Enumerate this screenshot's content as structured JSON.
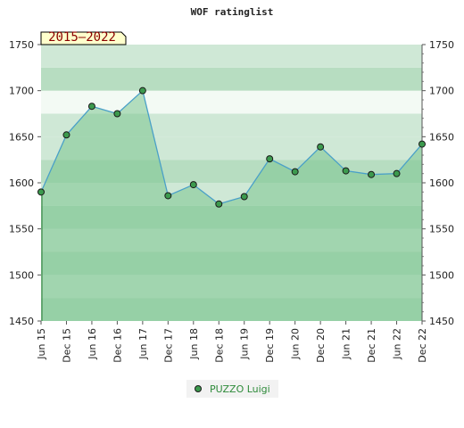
{
  "chart_data": {
    "type": "area",
    "title": "WOF ratinglist",
    "period_badge": "2015–2022",
    "categories": [
      "Jun 15",
      "Dec 15",
      "Jun 16",
      "Dec 16",
      "Jun 17",
      "Dec 17",
      "Jun 18",
      "Dec 18",
      "Jun 19",
      "Dec 19",
      "Jun 20",
      "Dec 20",
      "Jun 21",
      "Dec 21",
      "Jun 22",
      "Dec 22"
    ],
    "series": [
      {
        "name": "PUZZO Luigi",
        "values": [
          1590,
          1652,
          1683,
          1675,
          1700,
          1586,
          1598,
          1577,
          1585,
          1626,
          1612,
          1639,
          1613,
          1609,
          1610,
          1642
        ],
        "color": "#4aa0c8",
        "marker_color": "#3c9a4e"
      }
    ],
    "ylim": [
      1450,
      1750
    ],
    "yticks": [
      1450,
      1500,
      1550,
      1600,
      1650,
      1700,
      1750
    ],
    "ytick_labels": [
      "1450",
      "1500",
      "1550",
      "1600",
      "1650",
      "1700",
      "1750"
    ],
    "xlabel": "",
    "ylabel": "",
    "legend_position": "bottom-center",
    "grid": true,
    "colors": {
      "band_dark": "#b7ddc1",
      "band_light": "#cfe8d6",
      "band_lightest": "#f3faf4",
      "area_fill": "#7cc48f",
      "badge_bg": "#ffffcc",
      "badge_text": "#8b0000"
    }
  }
}
